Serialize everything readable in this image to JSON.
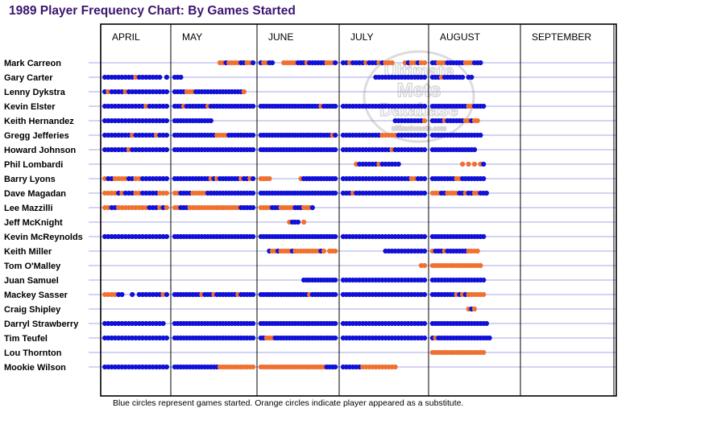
{
  "chart_data": {
    "type": "scatter",
    "title": "1989 Player Frequency Chart: By Games Started",
    "months": [
      "APRIL",
      "MAY",
      "JUNE",
      "JULY",
      "AUGUST",
      "SEPTEMBER"
    ],
    "footnote": "Blue circles represent games started. Orange circles indicate player appeared as a substitute.",
    "watermark": [
      "Ultimate",
      "Mets",
      "Database",
      "ultimatemets.com"
    ],
    "colors": {
      "started": "#1010d8",
      "substitute": "#f07030",
      "title": "#3b1470",
      "row_line": "#8a8ae0"
    },
    "legend": {
      "started": "Blue circles represent games started.",
      "substitute": "Orange circles indicate player appeared as a substitute."
    },
    "games_per_month": [
      19,
      27,
      27,
      26,
      29,
      27
    ],
    "players": [
      {
        "name": "Mark Carreon",
        "pattern": "----------------------------------ooboooobboobboobb---ooooobbbobbbbbbooobbbobbbbobbbobooo---obooboobbooobbbbbbooobbb"
      },
      {
        "name": "Gary Carter",
        "pattern": "bbbbbbbbbobbbbbbb-bbbb-------------------------------------------------------------bbbbbbbbbbbbbbbbbbbobbbbbbb-bb"
      },
      {
        "name": "Lenny Dykstra",
        "pattern": "bobbbbobbbbbbbbbbbbbbbbooobbbbbbbbbbbbbbbbo-------------------------------------------------------------------------"
      },
      {
        "name": "Kevin Elster",
        "pattern": "bbbbbbbbbbbbobbbbbbbbbobbbbbbbobbbbbbbbbbbbbbbbbbbbbbbbbbbbbbbbbbbbobbbbbbbbbbbbbbbbbbbbbbbbbbbbbbbbbbbbbbbbbbboobbbb"
      },
      {
        "name": "Keith Hernandez",
        "pattern": "bbbbbbbbbbbbbbbbbbbbbbbbbbbbbbbb---------------------------------------------------------bbbbbbbbbobbbbobbbbbbooboo"
      },
      {
        "name": "Gregg Jefferies",
        "pattern": "bbbbbbbbobbbbbbobbbbbbbbbbbbbbbbboooobbbbbbbbbbbbbbbbbbbbbbbbbbbbbbbbbbobbbbbbbbbbbbbooooobbbbbbbbbbbbbbbbbbbbbbbbbb"
      },
      {
        "name": "Howard Johnson",
        "pattern": "bbbbbbbobbbbbbbbbbbbbbbbbbbbbbbbbbbbbbbbbbbbbbbbbbbbbbbbbbbbbbbbbbbbbbbbbbbbbbbbbbbbbbbbobbbbbbbbbbbbbbbbbbbbbbbbb"
      },
      {
        "name": "Phil Lombardi",
        "pattern": "-----------------------------------------------------------------------------obbbbbbobbbbbb------------------o-o-o-ob"
      },
      {
        "name": "Barry Lyons",
        "pattern": "obboooobboobbbbbbbbbbbbbbbbbbbbobobbbbbbbobboboooo----------obbbbbbbbbbbbbbbbbbbbbbbbbbbbbbbbboobbbbbbbbbbboobbbbbbbb"
      },
      {
        "name": "Dave Magadan",
        "pattern": "oooobobbboobbbbbooooobbbbooooobbbbbbbbbbbbbbbbbbbbbbbbbbbbbbbbbbbbbbbbbbbbbbobbbbbbbbbbbbbbbbbbbbbbooobboooobbobboobbb"
      },
      {
        "name": "Lee Mazzilli",
        "pattern": "oobbooooooooobbbobooobbbooooooooooooooooobbbbboooobbbooooobbbooob----------------------------------------------------"
      },
      {
        "name": "Jeff McKnight",
        "pattern": "--------------------------------------------------------obbb-o--------------------------------------------------------"
      },
      {
        "name": "Kevin McReynolds",
        "pattern": "bbbbbbbbbbbbbbbbbbbbbbbbbbbbbbbbbbbbbbbbbbbbbbbbbbbbbbbbbbbbbbbbbbbbbbbbbbbbbbbbbbbbbbbbbbbbbbbbbbbbbbbbbbbbbbbbbbbbb"
      },
      {
        "name": "Keith Miller",
        "pattern": "-------------------------------------------------booboooobooooooooobo-ooo-------------bbbbbbbbbbbbbobbbobbbbbbboooo"
      },
      {
        "name": "Tom O'Malley",
        "pattern": "-------------------------------------------------------------------------------------------------ooooooooooooooooooo"
      },
      {
        "name": "Juan Samuel",
        "pattern": "-------------------------------------------------------------bbbbbbbbbbbbbbbbbbbbbbbbbbbbbbbbbbbbbbbbbbbbbbbbbbbbbbbb"
      },
      {
        "name": "Mackey Sasser",
        "pattern": "oooobb--b-bbbbbbbobbbbbbbbbbobbbobbbbbbbobbbbbbbbbbbbbbbbbbbbbbobbbbbbbbbbbbbbbbbbbbbbbbbbbbbbbbbbbbbbbbbbboboboooooo"
      },
      {
        "name": "Craig Shipley",
        "pattern": "---------------------------------------------------------------------------------------------------------------obo"
      },
      {
        "name": "Darryl Strawberry",
        "pattern": "bbbbbbbbbbbbbbbbbb-bbbbbbbbbbbbbbbbbbbbbbbbbbbbbbbbbbbbbbbbbbbbbbbbbbbbbbbbbbbbbbbbbbbbbbbbbbbbbbbbbbbbbbbbbbbbbbbbbbb"
      },
      {
        "name": "Tim Teufel",
        "pattern": "bbbbbbbbbbbbbbbbbbbbbbbbbbbbbbbbbbbbbbbbbbbbbbbbooobbbbbbbbbbbbbbbbbbbbbbbbbbbbbbbbbbbbbbbbbbbbbbbbbobbbbbbbbbbbbbbbbbb"
      },
      {
        "name": "Lou Thornton",
        "pattern": "---------------------------------------------------------------------------------------------------oooooooooooooooooo"
      },
      {
        "name": "Mookie Wilson",
        "pattern": "bbbbbbbbbbbbbbbbbbbbbbbbbbbbbbbbbbooooooooooooooooooooooooooooooooooobbbbbbbbbbooooooooooo-----------------------------"
      }
    ],
    "xlabel": "",
    "ylabel": ""
  }
}
